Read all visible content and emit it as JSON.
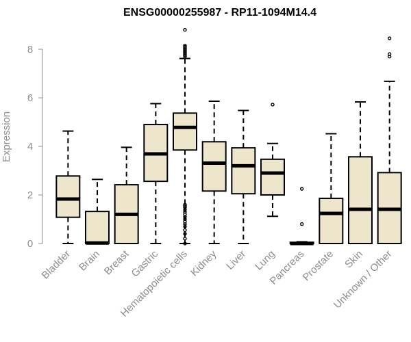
{
  "chart_data": {
    "type": "boxplot",
    "title": "ENSG00000255987 - RP11-1094M14.4",
    "xlabel": "",
    "ylabel": "Expression",
    "ylim": [
      0,
      8.8
    ],
    "yticks": [
      0,
      2,
      4,
      6,
      8
    ],
    "box_fill": "#ede6cc",
    "categories": [
      "Bladder",
      "Brain",
      "Breast",
      "Gastric",
      "Hematopoietic cells",
      "Kidney",
      "Liver",
      "Lung",
      "Pancreas",
      "Prostate",
      "Skin",
      "Unknown / Other"
    ],
    "boxes": [
      {
        "min": 0.0,
        "q1": 1.08,
        "median": 1.83,
        "q3": 2.78,
        "max": 4.63,
        "outliers": []
      },
      {
        "min": 0.0,
        "q1": 0.0,
        "median": 0.02,
        "q3": 1.32,
        "max": 2.64,
        "outliers": []
      },
      {
        "min": 0.0,
        "q1": 0.0,
        "median": 1.2,
        "q3": 2.42,
        "max": 3.96,
        "outliers": []
      },
      {
        "min": 0.0,
        "q1": 2.56,
        "median": 3.69,
        "q3": 4.9,
        "max": 5.76,
        "outliers": []
      },
      {
        "min": 0.0,
        "q1": 3.85,
        "median": 4.78,
        "q3": 5.37,
        "max": 7.62,
        "outliers": [
          8.8,
          8.15,
          8.1,
          8.05,
          8.0,
          7.95,
          7.9,
          7.85,
          7.8,
          7.75,
          7.7,
          1.6,
          1.55,
          1.5,
          1.4,
          1.3,
          1.2,
          1.1,
          1.0,
          0.9,
          0.8,
          0.7,
          0.55,
          0.4,
          0.2,
          0.0
        ]
      },
      {
        "min": 0.0,
        "q1": 2.16,
        "median": 3.31,
        "q3": 4.19,
        "max": 5.86,
        "outliers": []
      },
      {
        "min": 0.0,
        "q1": 2.05,
        "median": 3.2,
        "q3": 3.94,
        "max": 5.48,
        "outliers": []
      },
      {
        "min": 1.12,
        "q1": 2.0,
        "median": 2.9,
        "q3": 3.47,
        "max": 4.12,
        "outliers": [
          5.72
        ]
      },
      {
        "min": 0.0,
        "q1": 0.0,
        "median": 0.0,
        "q3": 0.05,
        "max": 0.07,
        "outliers": [
          2.25,
          0.8
        ]
      },
      {
        "min": 0.0,
        "q1": 0.0,
        "median": 1.24,
        "q3": 1.86,
        "max": 4.52,
        "outliers": []
      },
      {
        "min": 0.0,
        "q1": 0.0,
        "median": 1.41,
        "q3": 3.57,
        "max": 5.83,
        "outliers": []
      },
      {
        "min": 0.0,
        "q1": 0.0,
        "median": 1.41,
        "q3": 2.92,
        "max": 6.68,
        "outliers": [
          8.45,
          7.8,
          7.7
        ]
      }
    ]
  }
}
